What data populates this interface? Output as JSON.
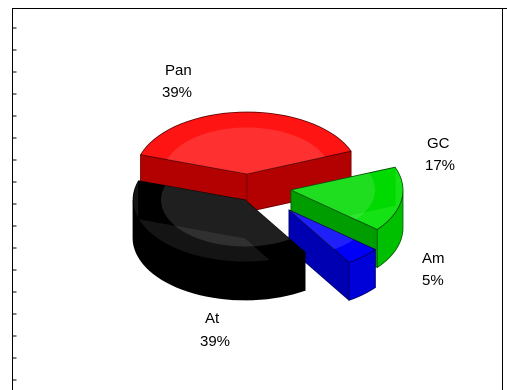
{
  "chart_data": {
    "type": "pie",
    "style": "3d-exploded",
    "slices": [
      {
        "label": "Pan",
        "percent": "39%",
        "value": 39,
        "color": "#ff0000"
      },
      {
        "label": "GC",
        "percent": "17%",
        "value": 17,
        "color": "#00e000"
      },
      {
        "label": "Am",
        "percent": "5%",
        "value": 5,
        "color": "#0000ff"
      },
      {
        "label": "At",
        "percent": "39%",
        "value": 39,
        "color": "#000000"
      }
    ],
    "title": "",
    "legend": "none"
  }
}
